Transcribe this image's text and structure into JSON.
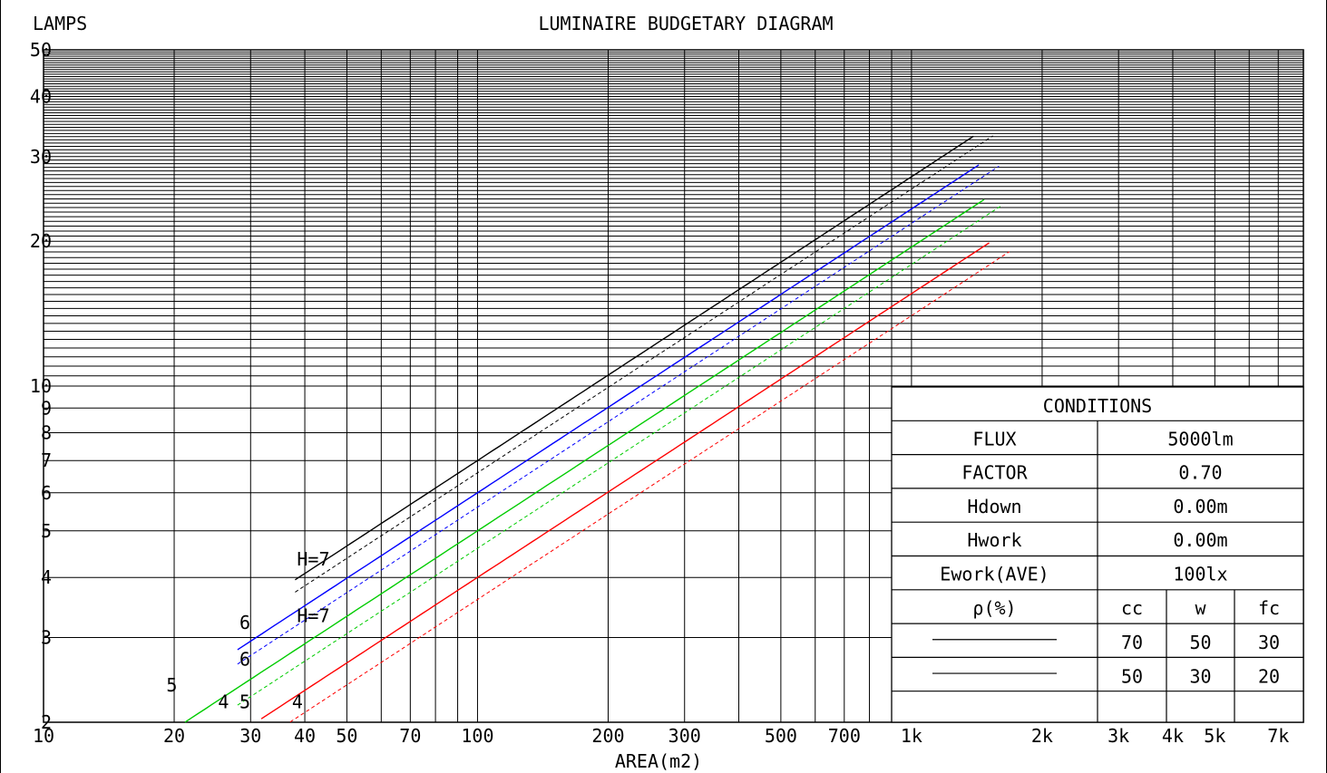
{
  "chart_data": {
    "type": "line",
    "title": "LUMINAIRE BUDGETARY DIAGRAM",
    "ylabel": "LAMPS",
    "xlabel": "AREA(m2)",
    "x_scale": "log",
    "y_scale": "log",
    "xlim": [
      10,
      8000
    ],
    "ylim": [
      2,
      50
    ],
    "grid": true,
    "x_ticks": [
      {
        "v": 10,
        "t": "10"
      },
      {
        "v": 20,
        "t": "20"
      },
      {
        "v": 30,
        "t": "30"
      },
      {
        "v": 40,
        "t": "40"
      },
      {
        "v": 50,
        "t": "50"
      },
      {
        "v": 70,
        "t": "70"
      },
      {
        "v": 100,
        "t": "100"
      },
      {
        "v": 200,
        "t": "200"
      },
      {
        "v": 300,
        "t": "300"
      },
      {
        "v": 500,
        "t": "500"
      },
      {
        "v": 700,
        "t": "700"
      },
      {
        "v": 1000,
        "t": "1k"
      },
      {
        "v": 2000,
        "t": "2k"
      },
      {
        "v": 3000,
        "t": "3k"
      },
      {
        "v": 4000,
        "t": "4k"
      },
      {
        "v": 5000,
        "t": "5k"
      },
      {
        "v": 7000,
        "t": "7k"
      }
    ],
    "y_ticks": [
      {
        "v": 2,
        "t": "2"
      },
      {
        "v": 3,
        "t": "3"
      },
      {
        "v": 4,
        "t": "4"
      },
      {
        "v": 5,
        "t": "5"
      },
      {
        "v": 6,
        "t": "6"
      },
      {
        "v": 7,
        "t": "7"
      },
      {
        "v": 8,
        "t": "8"
      },
      {
        "v": 9,
        "t": "9"
      },
      {
        "v": 10,
        "t": "10"
      },
      {
        "v": 20,
        "t": "20"
      },
      {
        "v": 30,
        "t": "30"
      },
      {
        "v": 40,
        "t": "40"
      },
      {
        "v": 50,
        "t": "50"
      }
    ],
    "series": [
      {
        "label": "H=7",
        "color": "#000000",
        "dashed": false,
        "a": 7.0,
        "x_end": 1390,
        "label_at": [
          38,
          4.2
        ]
      },
      {
        "label": "6",
        "color": "#0000ff",
        "dashed": false,
        "a": 6.0,
        "x_end": 1430,
        "label_at": [
          28,
          3.1
        ]
      },
      {
        "label": "5",
        "color": "#00cc00",
        "dashed": false,
        "a": 5.0,
        "x_end": 1470,
        "label_at": [
          19,
          2.3
        ]
      },
      {
        "label": "4",
        "color": "#ff0000",
        "dashed": false,
        "a": 4.0,
        "x_end": 1510,
        "label_at": [
          25,
          2.12
        ]
      },
      {
        "label": "H=7",
        "color": "#000000",
        "dashed": true,
        "a": 6.6,
        "x_end": 1540,
        "label_at": [
          38,
          3.2
        ]
      },
      {
        "label": "6",
        "color": "#0000ff",
        "dashed": true,
        "a": 5.6,
        "x_end": 1590,
        "label_at": [
          28,
          2.6
        ]
      },
      {
        "label": "5",
        "color": "#00cc00",
        "dashed": true,
        "a": 4.6,
        "x_end": 1620,
        "label_at": [
          28,
          2.12
        ]
      },
      {
        "label": "4",
        "color": "#ff0000",
        "dashed": true,
        "a": 3.6,
        "x_end": 1680,
        "label_at": [
          37,
          2.12
        ]
      }
    ]
  },
  "conditions": {
    "title": "CONDITIONS",
    "rows": [
      {
        "label": "FLUX",
        "value": "5000lm"
      },
      {
        "label": "FACTOR",
        "value": "0.70"
      },
      {
        "label": "Hdown",
        "value": "0.00m"
      },
      {
        "label": "Hwork",
        "value": "0.00m"
      },
      {
        "label": "Ework(AVE)",
        "value": "100lx"
      }
    ],
    "rho_label": "ρ(%)",
    "rho_headers": [
      "cc",
      "w",
      "fc"
    ],
    "rho_rows": [
      {
        "values": [
          "70",
          "50",
          "30"
        ]
      },
      {
        "values": [
          "50",
          "30",
          "20"
        ]
      }
    ]
  }
}
